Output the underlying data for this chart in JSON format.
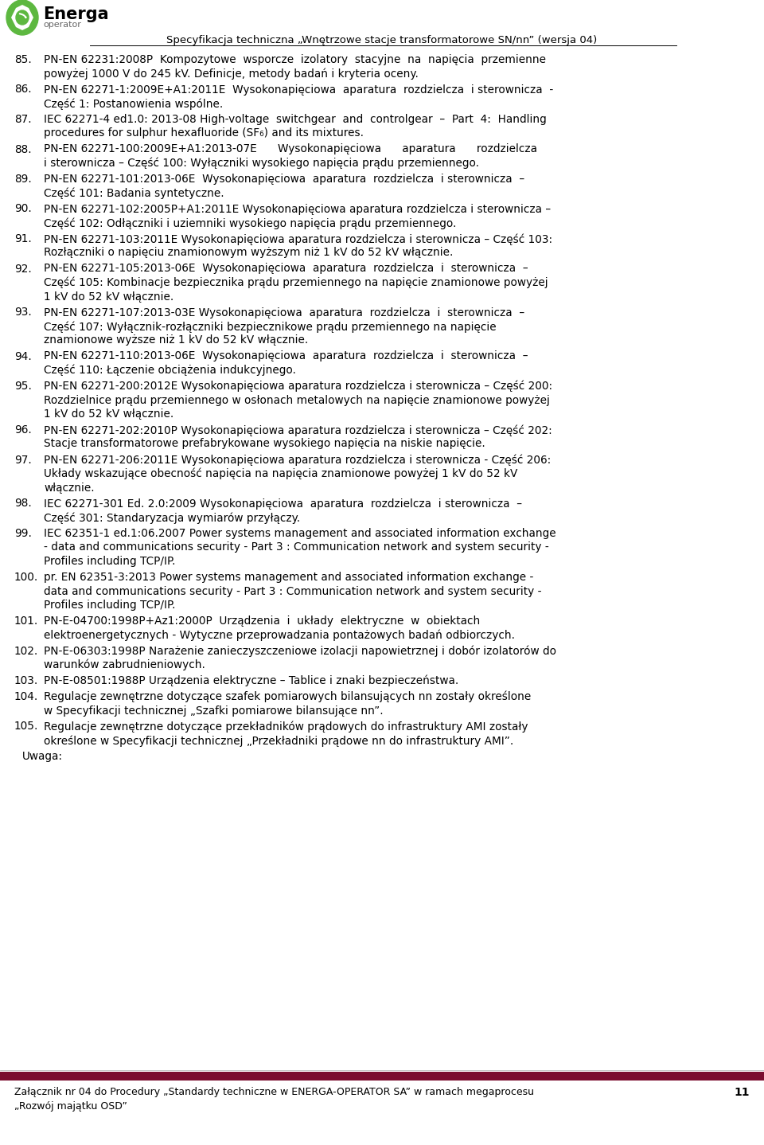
{
  "bg_color": "#ffffff",
  "footer_bar_color": "#7B0C2E",
  "header_title": "Specyfikacja techniczna „Wnętrzowe stacje transformatorowe SN/nn” (wersja 04)",
  "footer_text": "Załącznik nr 04 do Procedury „Standardy techniczne w ENERGA-OPERATOR SA” w ramach megaprocesu",
  "footer_text2": "„Rozwój majątku OSD”",
  "footer_page": "11",
  "logo_green": "#5DB840",
  "logo_text": "Energa",
  "logo_sub": "operator",
  "body_paragraphs": [
    {
      "num": "85.",
      "lines": [
        "PN-EN 62231:2008P  Kompozytowe  wsporcze  izolatory  stacyjne  na  napięcia  przemienne",
        "powyżej 1000 V do 245 kV. Definicje, metody badań i kryteria oceny."
      ]
    },
    {
      "num": "86.",
      "lines": [
        "PN-EN 62271-1:2009E+A1:2011E  Wysokonapięciowa  aparatura  rozdzielcza  i sterownicza  -",
        "Część 1: Postanowienia wspólne."
      ]
    },
    {
      "num": "87.",
      "lines": [
        "IEC 62271-4 ed1.0: 2013-08 High-voltage  switchgear  and  controlgear  –  Part  4:  Handling",
        "procedures for sulphur hexafluoride (SF₆) and its mixtures."
      ]
    },
    {
      "num": "88.",
      "lines": [
        "PN-EN 62271-100:2009E+A1:2013-07E      Wysokonapięciowa      aparatura      rozdzielcza",
        "i sterownicza – Część 100: Wyłączniki wysokiego napięcia prądu przemiennego."
      ]
    },
    {
      "num": "89.",
      "lines": [
        "PN-EN 62271-101:2013-06E  Wysokonapięciowa  aparatura  rozdzielcza  i sterownicza  –",
        "Część 101: Badania syntetyczne."
      ]
    },
    {
      "num": "90.",
      "lines": [
        "PN-EN 62271-102:2005P+A1:2011E Wysokonapięciowa aparatura rozdzielcza i sterownicza –",
        "Część 102: Odłączniki i uziemniki wysokiego napięcia prądu przemiennego."
      ]
    },
    {
      "num": "91.",
      "lines": [
        "PN-EN 62271-103:2011E Wysokonapięciowa aparatura rozdzielcza i sterownicza – Część 103:",
        "Rozłączniki o napięciu znamionowym wyższym niż 1 kV do 52 kV włącznie."
      ]
    },
    {
      "num": "92.",
      "lines": [
        "PN-EN 62271-105:2013-06E  Wysokonapięciowa  aparatura  rozdzielcza  i  sterownicza  –",
        "Część 105: Kombinacje bezpiecznika prądu przemiennego na napięcie znamionowe powyżej",
        "1 kV do 52 kV włącznie."
      ]
    },
    {
      "num": "93.",
      "lines": [
        "PN-EN 62271-107:2013-03E Wysokonapięciowa  aparatura  rozdzielcza  i  sterownicza  –",
        "Część 107: Wyłącznik-rozłączniki bezpiecznikowe prądu przemiennego na napięcie",
        "znamionowe wyższe niż 1 kV do 52 kV włącznie."
      ]
    },
    {
      "num": "94.",
      "lines": [
        "PN-EN 62271-110:2013-06E  Wysokonapięciowa  aparatura  rozdzielcza  i  sterownicza  –",
        "Część 110: Łączenie obciążenia indukcyjnego."
      ]
    },
    {
      "num": "95.",
      "lines": [
        "PN-EN 62271-200:2012E Wysokonapięciowa aparatura rozdzielcza i sterownicza – Część 200:",
        "Rozdzielnice prądu przemiennego w osłonach metalowych na napięcie znamionowe powyżej",
        "1 kV do 52 kV włącznie."
      ]
    },
    {
      "num": "96.",
      "lines": [
        "PN-EN 62271-202:2010P Wysokonapięciowa aparatura rozdzielcza i sterownicza – Część 202:",
        "Stacje transformatorowe prefabrykowane wysokiego napięcia na niskie napięcie."
      ]
    },
    {
      "num": "97.",
      "lines": [
        "PN-EN 62271-206:2011E Wysokonapięciowa aparatura rozdzielcza i sterownicza - Część 206:",
        "Układy wskazujące obecność napięcia na napięcia znamionowe powyżej 1 kV do 52 kV",
        "włącznie."
      ]
    },
    {
      "num": "98.",
      "lines": [
        "IEC 62271-301 Ed. 2.0:2009 Wysokonapięciowa  aparatura  rozdzielcza  i sterownicza  –",
        "Część 301: Standaryzacja wymiarów przyłączy."
      ]
    },
    {
      "num": "99.",
      "lines": [
        "IEC 62351-1 ed.1:06.2007 Power systems management and associated information exchange",
        "- data and communications security - Part 3 : Communication network and system security -",
        "Profiles including TCP/IP."
      ]
    },
    {
      "num": "100.",
      "lines": [
        "pr. EN 62351-3:2013 Power systems management and associated information exchange -",
        "data and communications security - Part 3 : Communication network and system security -",
        "Profiles including TCP/IP."
      ]
    },
    {
      "num": "101.",
      "lines": [
        "PN-E-04700:1998P+Az1:2000P  Urządzenia  i  układy  elektryczne  w  obiektach",
        "elektroenergetycznych - Wytyczne przeprowadzania pontażowych badań odbiorczych."
      ]
    },
    {
      "num": "102.",
      "lines": [
        "PN-E-06303:1998P Narażenie zanieczyszczeniowe izolacji napowietrznej i dobór izolatorów do",
        "warunków zabrudnieniowych."
      ]
    },
    {
      "num": "103.",
      "lines": [
        "PN-E-08501:1988P Urządzenia elektryczne – Tablice i znaki bezpieczeństwa."
      ]
    },
    {
      "num": "104.",
      "lines": [
        "Regulacje zewnętrzne dotyczące szafek pomiarowych bilansujących nn zostały określone",
        "w Specyfikacji technicznej „Szafki pomiarowe bilansujące nn”."
      ]
    },
    {
      "num": "105.",
      "lines": [
        "Regulacje zewnętrzne dotyczące przekładników prądowych do infrastruktury AMI zostały",
        "określone w Specyfikacji technicznej „Przekładniki prądowe nn do infrastruktury AMI”."
      ]
    },
    {
      "num": "",
      "lines": [
        "Uwaga:"
      ]
    }
  ]
}
